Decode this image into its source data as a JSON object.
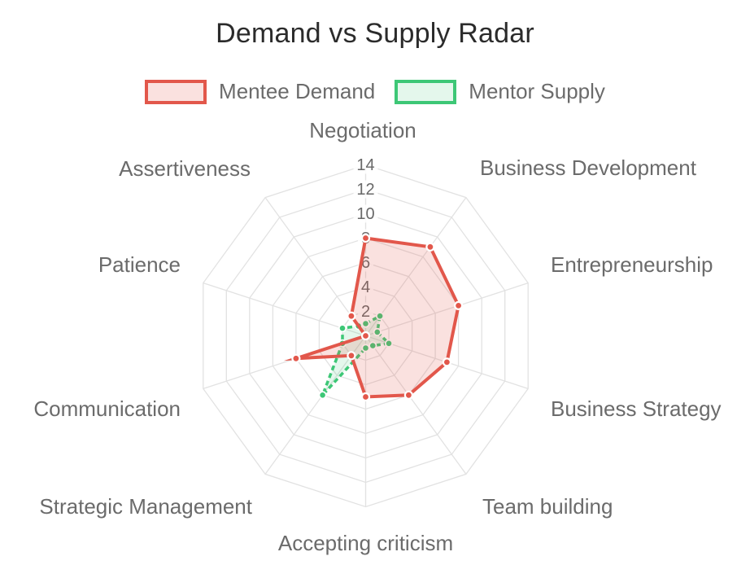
{
  "title": "Demand vs Supply Radar",
  "legend": [
    {
      "label": "Mentee Demand",
      "color": "#E2574B",
      "fill": "rgba(226,87,75,0.18)"
    },
    {
      "label": "Mentor Supply",
      "color": "#3DC776",
      "fill": "rgba(61,199,118,0.14)"
    }
  ],
  "chart_data": {
    "type": "radar",
    "categories": [
      "Negotiation",
      "Business Development",
      "Entrepreneurship",
      "Business Strategy",
      "Team building",
      "Accepting criticism",
      "Strategic Management",
      "Communication",
      "Patience",
      "Assertiveness"
    ],
    "series": [
      {
        "name": "Mentee Demand",
        "color": "#E2574B",
        "fill": "rgba(226,87,75,0.18)",
        "values": [
          8,
          9,
          8,
          7,
          6,
          5,
          2,
          6,
          0,
          2
        ]
      },
      {
        "name": "Mentor Supply",
        "color": "#3DC776",
        "fill": "rgba(61,199,118,0.14)",
        "values": [
          1,
          2,
          1,
          2,
          1,
          1,
          6,
          2,
          2,
          1
        ]
      }
    ],
    "ticks": [
      2,
      4,
      6,
      8,
      10,
      12,
      14
    ],
    "rmin": 0,
    "rmax": 14,
    "grid": true,
    "grid_shape": "polygon",
    "legend_position": "top",
    "tick_color": "#686868",
    "axis_label_color": "#6b6b6b",
    "grid_color": "#e2e2e2"
  }
}
